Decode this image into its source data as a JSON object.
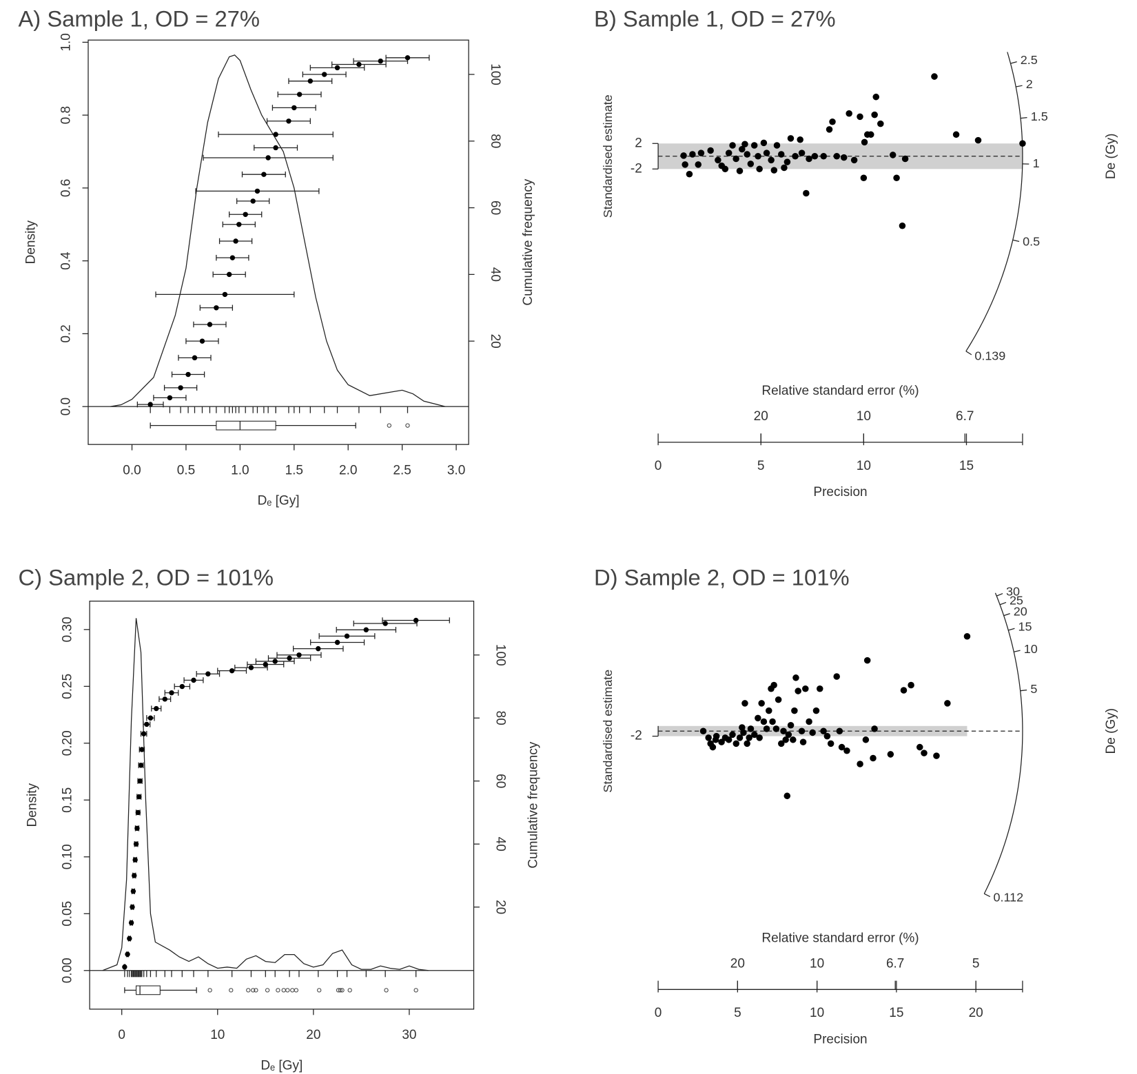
{
  "chart_data": [
    {
      "type": "density_cumulative",
      "title": "A) Sample 1, OD = 27%",
      "xlabel": "Dₑ [Gy]",
      "ylabel": "Density",
      "y2label": "Cumulative frequency",
      "xlim": [
        -0.405,
        3.115
      ],
      "xticks": [
        {
          "value": 0,
          "label": "0.0"
        },
        0.5,
        {
          "value": 1,
          "label": "1.0"
        },
        1.5,
        {
          "value": 2,
          "label": "2.0"
        },
        2.5,
        {
          "value": 3,
          "label": "3.0"
        }
      ],
      "ylim": [
        -0.104,
        1.006
      ],
      "yticks": [
        {
          "value": 0,
          "label": "0.0"
        },
        0.2,
        0.4,
        0.6,
        0.8,
        {
          "value": 1,
          "label": "1.0"
        }
      ],
      "y2lim": [
        -11.0,
        110.3
      ],
      "y2ticks": [
        20,
        40,
        60,
        80,
        100
      ],
      "density": {
        "x": [
          -0.2,
          -0.1,
          0,
          0.2,
          0.4,
          0.5,
          0.6,
          0.7,
          0.8,
          0.9,
          0.95,
          1.0,
          1.1,
          1.2,
          1.3,
          1.4,
          1.5,
          1.6,
          1.7,
          1.8,
          1.9,
          2.0,
          2.2,
          2.4,
          2.5,
          2.6,
          2.7,
          2.9
        ],
        "y": [
          0,
          0.005,
          0.02,
          0.08,
          0.25,
          0.38,
          0.6,
          0.78,
          0.9,
          0.96,
          0.965,
          0.95,
          0.87,
          0.8,
          0.75,
          0.7,
          0.6,
          0.45,
          0.3,
          0.18,
          0.1,
          0.06,
          0.03,
          0.04,
          0.045,
          0.035,
          0.015,
          0
        ]
      },
      "cumulative": {
        "x": [
          0.17,
          0.35,
          0.45,
          0.52,
          0.58,
          0.65,
          0.72,
          0.78,
          0.86,
          0.9,
          0.93,
          0.96,
          0.99,
          1.05,
          1.12,
          1.16,
          1.22,
          1.26,
          1.33,
          1.33,
          1.45,
          1.5,
          1.55,
          1.65,
          1.78,
          1.9,
          2.1,
          2.3,
          2.55
        ],
        "y": [
          1,
          3,
          6,
          10,
          15,
          20,
          25,
          30,
          34,
          40,
          45,
          50,
          55,
          58,
          62,
          65,
          70,
          75,
          78,
          82,
          86,
          90,
          94,
          98,
          100,
          102,
          103,
          104,
          105
        ],
        "error": [
          0.12,
          0.15,
          0.15,
          0.15,
          0.15,
          0.15,
          0.15,
          0.15,
          0.64,
          0.15,
          0.15,
          0.15,
          0.15,
          0.15,
          0.15,
          0.57,
          0.2,
          0.6,
          0.2,
          0.53,
          0.2,
          0.2,
          0.2,
          0.2,
          0.2,
          0.25,
          0.25,
          0.25,
          0.2
        ]
      },
      "boxplot": {
        "min": 0.17,
        "q1": 0.78,
        "median": 1.0,
        "q3": 1.33,
        "max": 2.07,
        "outliers": [
          2.38,
          2.55
        ]
      }
    },
    {
      "type": "radial",
      "title": "B) Sample 1, OD = 27%",
      "xlabel": "Precision",
      "x2label": "Relative standard error (%)",
      "ylabel": "Standardised estimate",
      "zlabel": "De (Gy)",
      "xlim": [
        0,
        17.73
      ],
      "xticks": [
        0,
        5,
        10,
        15
      ],
      "rse_ticks": [
        20,
        10,
        6.7
      ],
      "ylim": [
        -26,
        16.5
      ],
      "yticks": [
        2,
        -2
      ],
      "band": [
        -2,
        2
      ],
      "central_value": 1.07,
      "zlim": [
        0.139,
        2.8
      ],
      "zticks": [
        0.139,
        0.5,
        1,
        1.5,
        2,
        2.5
      ],
      "x": [
        1.24,
        1.31,
        1.52,
        1.67,
        1.95,
        2.09,
        2.55,
        2.91,
        3.09,
        3.26,
        3.44,
        3.62,
        3.79,
        3.97,
        4.08,
        4.22,
        4.33,
        4.5,
        4.68,
        4.86,
        4.93,
        5.14,
        5.28,
        5.5,
        5.64,
        5.78,
        5.99,
        6.13,
        6.28,
        6.45,
        6.67,
        6.91,
        6.99,
        7.2,
        7.34,
        7.62,
        8.05,
        8.33,
        8.48,
        8.69,
        9.04,
        9.29,
        9.54,
        9.82,
        10.0,
        10.04,
        10.18,
        10.35,
        10.53,
        10.6,
        10.82,
        11.42,
        11.6,
        11.88,
        12.02,
        13.44,
        14.5,
        15.57,
        17.73
      ],
      "y": [
        0.1,
        -1.3,
        -2.8,
        0.3,
        -1.3,
        0.5,
        0.9,
        -0.6,
        -1.5,
        -2.0,
        0.5,
        1.7,
        -0.4,
        -2.3,
        1.1,
        1.9,
        0.3,
        -1.2,
        1.7,
        0.0,
        -2.0,
        2.1,
        0.5,
        -0.6,
        -2.2,
        1.7,
        0.3,
        -1.8,
        -0.9,
        2.8,
        0.0,
        2.6,
        0.5,
        -5.8,
        -0.4,
        0.0,
        0.0,
        4.2,
        5.4,
        0.0,
        -0.2,
        6.7,
        -0.6,
        6.2,
        -3.4,
        2.2,
        3.4,
        3.4,
        6.5,
        9.3,
        5.1,
        0.2,
        -3.4,
        -10.9,
        -0.4,
        12.5,
        3.4,
        2.5,
        2.0
      ]
    },
    {
      "type": "density_cumulative",
      "title": "C) Sample 2, OD = 101%",
      "xlabel": "Dₑ [Gy]",
      "ylabel": "Density",
      "y2label": "Cumulative frequency",
      "xlim": [
        -3.35,
        36.73
      ],
      "xticks": [
        0,
        10,
        20,
        30
      ],
      "ylim": [
        -0.034,
        0.325
      ],
      "yticks": [
        {
          "value": 0,
          "label": "0.00"
        },
        0.05,
        {
          "value": 0.1,
          "label": "0.10"
        },
        0.15,
        {
          "value": 0.2,
          "label": "0.20"
        },
        0.25,
        {
          "value": 0.3,
          "label": "0.30"
        }
      ],
      "y2lim": [
        -12.4,
        117.1
      ],
      "y2ticks": [
        20,
        40,
        60,
        80,
        100
      ],
      "density": {
        "x": [
          -2,
          -0.5,
          0,
          0.5,
          1,
          1.5,
          2,
          2.5,
          3,
          3.5,
          5,
          6,
          7,
          8,
          9,
          10,
          11,
          12,
          13,
          14,
          15,
          16,
          17,
          18,
          19,
          20,
          21,
          22,
          23,
          24,
          25,
          26,
          27,
          28,
          29,
          30,
          31,
          32
        ],
        "y": [
          0,
          0.005,
          0.02,
          0.08,
          0.22,
          0.31,
          0.28,
          0.15,
          0.05,
          0.025,
          0.018,
          0.012,
          0.008,
          0.012,
          0.006,
          0.002,
          0.003,
          0.002,
          0.01,
          0.013,
          0.008,
          0.007,
          0.014,
          0.014,
          0.006,
          0.003,
          0.005,
          0.015,
          0.018,
          0.005,
          0.001,
          0.001,
          0.004,
          0.002,
          0.001,
          0.004,
          0.001,
          0
        ]
      },
      "cumulative": {
        "x": [
          0.3,
          0.6,
          0.8,
          1.0,
          1.1,
          1.2,
          1.3,
          1.4,
          1.5,
          1.6,
          1.7,
          1.8,
          1.9,
          2.0,
          2.1,
          2.3,
          2.6,
          3.0,
          3.6,
          4.5,
          5.2,
          6.3,
          7.5,
          9.0,
          11.5,
          13.5,
          15,
          16,
          17.5,
          18.5,
          20.5,
          22.5,
          23.5,
          25.5,
          27.5,
          30.7
        ],
        "y": [
          1,
          5,
          10,
          15,
          20,
          25,
          30,
          35,
          40,
          45,
          50,
          55,
          60,
          65,
          70,
          75,
          78,
          80,
          83,
          86,
          88,
          90,
          92,
          94,
          95,
          96,
          97,
          98,
          99,
          100,
          102,
          104,
          106,
          108,
          110,
          111
        ],
        "error": [
          0.05,
          0.08,
          0.1,
          0.12,
          0.13,
          0.14,
          0.15,
          0.16,
          0.17,
          0.18,
          0.2,
          0.21,
          0.22,
          0.24,
          0.26,
          0.3,
          0.35,
          0.4,
          0.5,
          0.6,
          0.7,
          0.8,
          1.0,
          1.2,
          1.5,
          1.7,
          1.9,
          2.0,
          2.2,
          2.3,
          2.6,
          2.8,
          2.9,
          3.1,
          3.3,
          3.5
        ]
      },
      "boxplot": {
        "min": 0.3,
        "q1": 1.5,
        "median": 1.9,
        "q3": 4.0,
        "max": 7.8,
        "outliers": [
          9.2,
          11.4,
          13.2,
          13.7,
          14.0,
          15.2,
          16.3,
          16.9,
          17.3,
          17.8,
          18.2,
          20.6,
          22.6,
          22.8,
          23.0,
          23.8,
          27.6,
          30.7
        ]
      }
    },
    {
      "type": "radial",
      "title": "D) Sample 2, OD = 101%",
      "xlabel": "Precision",
      "x2label": "Relative standard error (%)",
      "ylabel": "Standardised estimate",
      "zlabel": "De (Gy)",
      "xlim": [
        0,
        22.94
      ],
      "xticks": [
        0,
        5,
        10,
        15,
        20
      ],
      "rse_ticks": [
        20,
        10,
        6.7,
        5
      ],
      "ylim": [
        -59,
        49.5
      ],
      "yticks": [
        -2
      ],
      "band": [
        -2,
        2
      ],
      "central_value": 2.5,
      "zlim": [
        0.112,
        32
      ],
      "zticks": [
        0.112,
        5,
        10,
        15,
        20,
        25,
        30
      ],
      "x": [
        2.84,
        3.17,
        3.3,
        3.44,
        3.62,
        3.67,
        3.99,
        4.22,
        4.45,
        4.68,
        4.91,
        5.14,
        5.28,
        5.37,
        5.46,
        5.6,
        5.73,
        5.83,
        6.06,
        6.28,
        6.38,
        6.51,
        6.65,
        6.83,
        6.97,
        7.11,
        7.2,
        7.29,
        7.43,
        7.57,
        7.75,
        7.89,
        8.03,
        8.12,
        8.21,
        8.35,
        8.49,
        8.58,
        8.67,
        8.81,
        9.04,
        9.13,
        9.27,
        9.5,
        9.72,
        9.95,
        10.18,
        10.41,
        10.64,
        10.87,
        11.24,
        11.42,
        11.56,
        11.88,
        12.71,
        13.07,
        13.17,
        13.53,
        13.62,
        14.63,
        15.46,
        15.92,
        16.47,
        16.74,
        17.52,
        18.21,
        19.45
      ],
      "y": [
        0.0,
        -2.6,
        -4.9,
        -6.3,
        -3.4,
        -2.0,
        -4.3,
        -2.6,
        -3.4,
        -1.4,
        -4.9,
        -2.6,
        1.4,
        -0.6,
        10.9,
        -4.9,
        -2.6,
        0.9,
        -1.4,
        5.1,
        -2.6,
        10.9,
        3.7,
        0.9,
        8.0,
        16.6,
        3.7,
        18.0,
        0.9,
        12.3,
        -4.9,
        0.0,
        -3.4,
        -25.4,
        -1.4,
        2.3,
        -3.4,
        8.0,
        20.9,
        15.7,
        0.0,
        -4.3,
        16.6,
        3.7,
        -0.6,
        8.0,
        16.6,
        0.0,
        -2.0,
        -4.9,
        21.4,
        0.0,
        -6.3,
        -7.7,
        -12.9,
        -3.4,
        27.7,
        -10.6,
        0.9,
        -9.1,
        16.0,
        18.0,
        -6.3,
        -8.6,
        -9.7,
        10.9,
        37.1
      ]
    }
  ]
}
